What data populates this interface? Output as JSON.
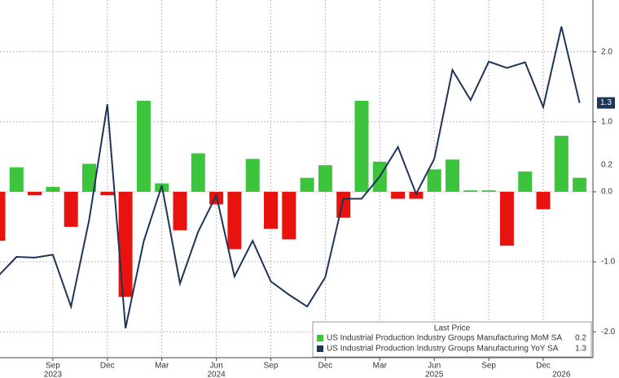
{
  "chart_data": {
    "type": "combo",
    "categories": [
      null,
      null,
      null,
      "Sep",
      null,
      null,
      "Dec",
      null,
      null,
      "Mar",
      null,
      null,
      "Jun",
      null,
      null,
      "Sep",
      null,
      null,
      "Dec",
      null,
      null,
      "Mar",
      null,
      null,
      "Jun",
      null,
      null,
      "Sep",
      null,
      null,
      "Dec",
      null,
      null
    ],
    "year_labels": [
      {
        "index": 3,
        "label": "2023"
      },
      {
        "index": 12,
        "label": "2024"
      },
      {
        "index": 24,
        "label": "2025"
      },
      {
        "index": 31,
        "label": "2026"
      }
    ],
    "legend_title": "Last Price",
    "series": [
      {
        "type": "bar",
        "name": "US Industrial Production Industry Groups Manufacturing MoM SA",
        "last_label": "0.2",
        "color": "#3cc43c",
        "negative_color": "#e8130f",
        "values": [
          -0.7,
          0.35,
          -0.05,
          0.07,
          -0.5,
          0.4,
          -0.05,
          -1.5,
          1.3,
          0.12,
          -0.55,
          0.55,
          -0.18,
          -0.82,
          0.47,
          -0.53,
          -0.68,
          0.2,
          0.38,
          -0.37,
          1.3,
          0.43,
          -0.1,
          -0.1,
          0.32,
          0.46,
          0.02,
          0.02,
          -0.77,
          0.29,
          -0.25,
          0.8,
          0.2
        ]
      },
      {
        "type": "line",
        "name": "US Industrial Production Industry Groups Manufacturing YoY SA",
        "last_label": "1.3",
        "color": "#1d3557",
        "values": [
          -1.2,
          -0.93,
          -0.94,
          -0.9,
          -1.64,
          -0.4,
          1.25,
          -1.95,
          -0.71,
          0.09,
          -1.31,
          -0.57,
          -0.05,
          -1.21,
          -0.7,
          -1.28,
          -1.47,
          -1.64,
          -1.22,
          -0.1,
          -0.1,
          0.22,
          0.64,
          -0.03,
          0.47,
          1.74,
          1.31,
          1.86,
          1.77,
          1.85,
          1.21,
          2.36,
          1.27
        ]
      }
    ],
    "ylim": [
      -2.37,
      2.74
    ],
    "yticks": [
      {
        "value": 2,
        "label": "2.0"
      },
      {
        "value": 1,
        "label": "1.0"
      },
      {
        "value": 0,
        "label": "0.0"
      },
      {
        "value": -1,
        "label": "-1.0"
      },
      {
        "value": -2,
        "label": "-2.0"
      }
    ],
    "grid": true
  }
}
